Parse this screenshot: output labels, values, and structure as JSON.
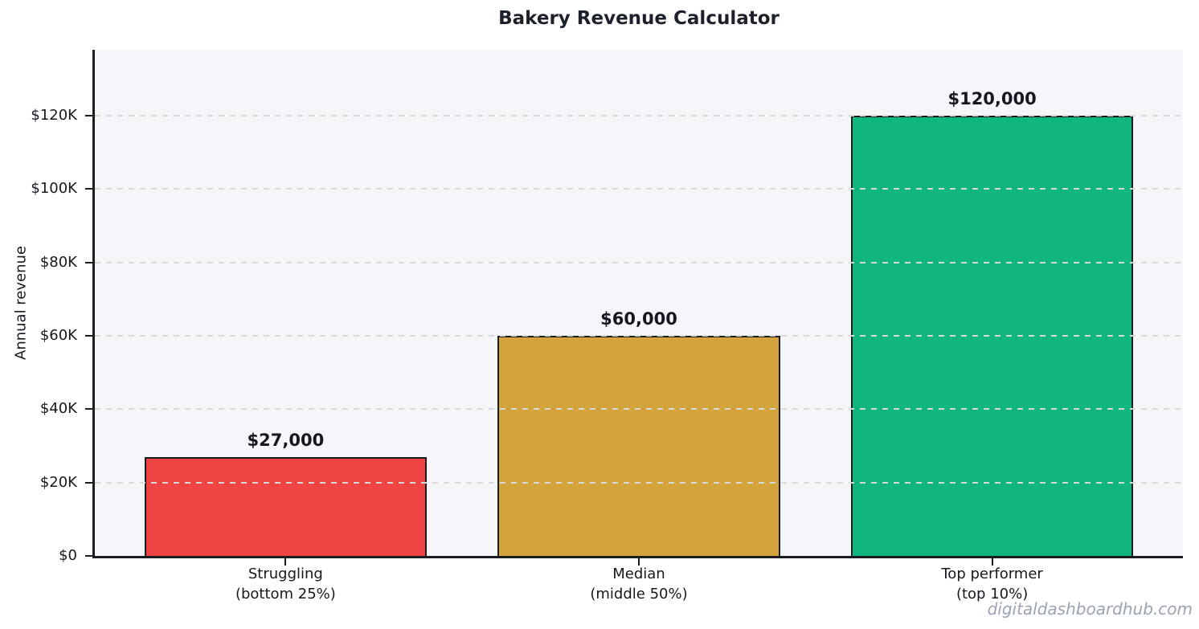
{
  "chart_data": {
    "type": "bar",
    "title": "Bakery Revenue Calculator",
    "ylabel": "Annual revenue",
    "xlabel": "",
    "categories": [
      [
        "Struggling",
        "(bottom 25%)"
      ],
      [
        "Median",
        "(middle 50%)"
      ],
      [
        "Top performer",
        "(top 10%)"
      ]
    ],
    "values": [
      27000,
      60000,
      120000
    ],
    "value_labels": [
      "$27,000",
      "$60,000",
      "$120,000"
    ],
    "bar_colors": [
      "#ef4444",
      "#d3a43c",
      "#11b580"
    ],
    "bar_edge_color": "#1b1b22",
    "ylim": [
      0,
      138000
    ],
    "yticks": [
      0,
      20000,
      40000,
      60000,
      80000,
      100000,
      120000
    ],
    "ytick_labels": [
      "$0",
      "$20K",
      "$40K",
      "$60K",
      "$80K",
      "$100K",
      "$120K"
    ],
    "grid": "horizontal-dashed",
    "legend": "none",
    "plot_bg_color": "#f5f6fa"
  },
  "watermark": "digitaldashboardhub.com"
}
